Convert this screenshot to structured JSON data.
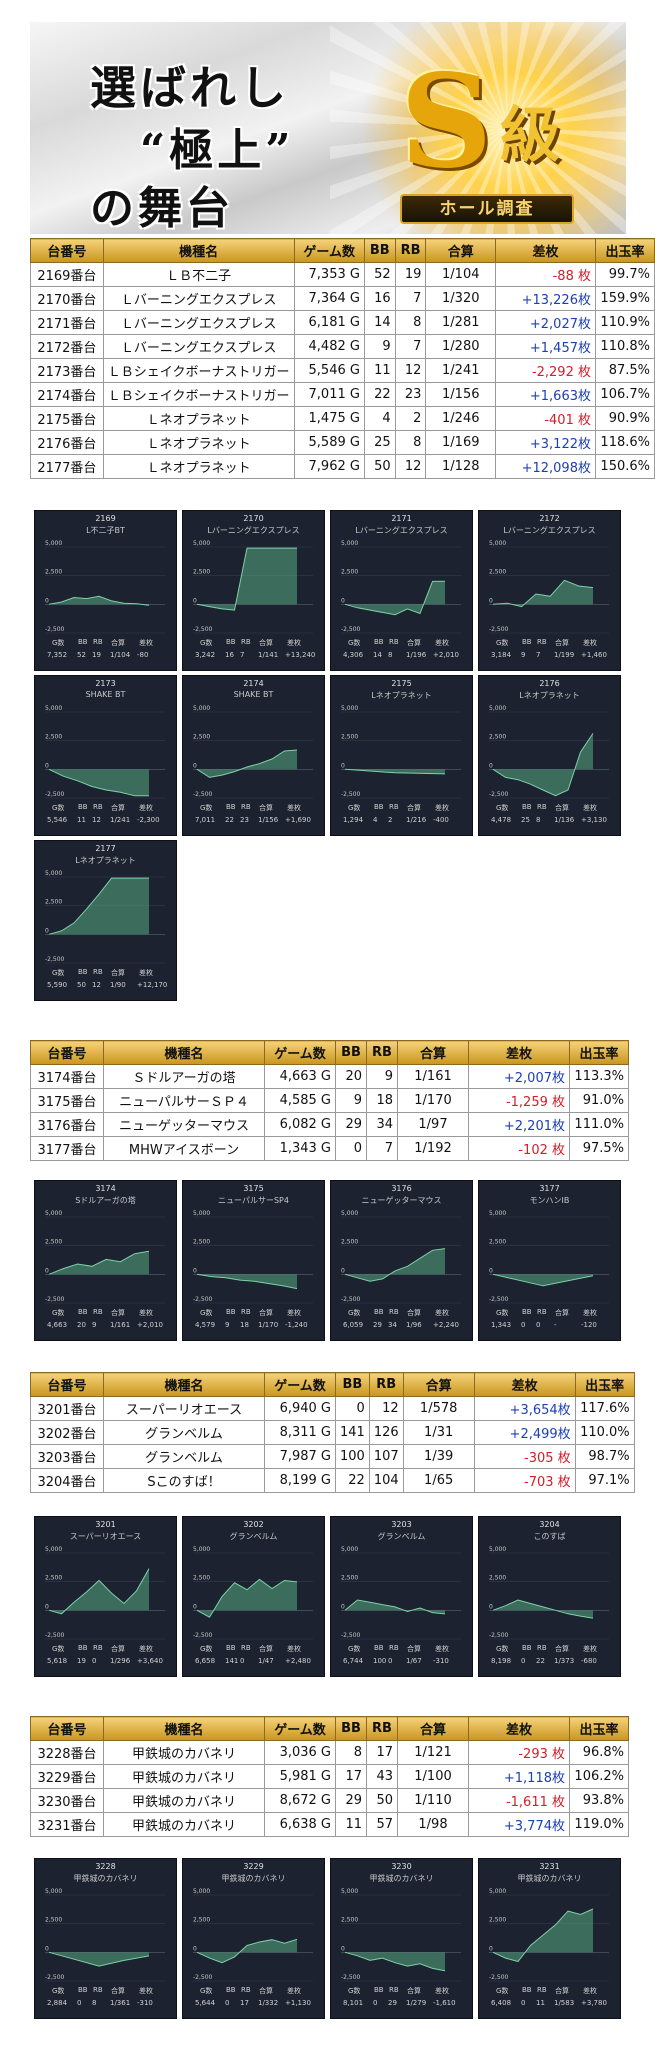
{
  "banner": {
    "line1": "選ばれし",
    "line2": "“極上”",
    "line3": "の舞台",
    "emblem_s": "S",
    "emblem_kyu": "級",
    "hall_label": "ホール調査"
  },
  "headers": [
    "台番号",
    "機種名",
    "ゲーム数",
    "BB",
    "RB",
    "合算",
    "差枚",
    "出玉率"
  ],
  "chart_axis": {
    "top": "5,000",
    "mid": "2,500",
    "zero": "0",
    "bottom": "-2,500"
  },
  "stat_labels": [
    "G数",
    "BB",
    "RB",
    "合算",
    "差枚"
  ],
  "chart_data": [
    {
      "type": "table",
      "rows": [
        {
          "no": "2169番台",
          "model": "ＬＢ不二子",
          "games": "7,353 G",
          "bb": "52",
          "rb": "19",
          "ratio": "1/104",
          "diff": "-88 枚",
          "rate": "99.7%"
        },
        {
          "no": "2170番台",
          "model": "Ｌバーニングエクスプレス",
          "games": "7,364 G",
          "bb": "16",
          "rb": "7",
          "ratio": "1/320",
          "diff": "+13,226枚",
          "rate": "159.9%"
        },
        {
          "no": "2171番台",
          "model": "Ｌバーニングエクスプレス",
          "games": "6,181 G",
          "bb": "14",
          "rb": "8",
          "ratio": "1/281",
          "diff": "+2,027枚",
          "rate": "110.9%"
        },
        {
          "no": "2172番台",
          "model": "Ｌバーニングエクスプレス",
          "games": "4,482 G",
          "bb": "9",
          "rb": "7",
          "ratio": "1/280",
          "diff": "+1,457枚",
          "rate": "110.8%"
        },
        {
          "no": "2173番台",
          "model": "ＬＢシェイクボーナストリガー",
          "games": "5,546 G",
          "bb": "11",
          "rb": "12",
          "ratio": "1/241",
          "diff": "-2,292 枚",
          "rate": "87.5%"
        },
        {
          "no": "2174番台",
          "model": "ＬＢシェイクボーナストリガー",
          "games": "7,011 G",
          "bb": "22",
          "rb": "23",
          "ratio": "1/156",
          "diff": "+1,663枚",
          "rate": "106.7%"
        },
        {
          "no": "2175番台",
          "model": "Ｌネオプラネット",
          "games": "1,475 G",
          "bb": "4",
          "rb": "2",
          "ratio": "1/246",
          "diff": "-401 枚",
          "rate": "90.9%"
        },
        {
          "no": "2176番台",
          "model": "Ｌネオプラネット",
          "games": "5,589 G",
          "bb": "25",
          "rb": "8",
          "ratio": "1/169",
          "diff": "+3,122枚",
          "rate": "118.6%"
        },
        {
          "no": "2177番台",
          "model": "Ｌネオプラネット",
          "games": "7,962 G",
          "bb": "50",
          "rb": "12",
          "ratio": "1/128",
          "diff": "+12,098枚",
          "rate": "150.6%"
        }
      ]
    },
    {
      "type": "line",
      "ylim": [
        -2500,
        5000
      ],
      "panels": [
        {
          "id": "2169",
          "name": "L不二子BT",
          "stats": [
            "7,352",
            "52",
            "19",
            "1/104",
            "-80"
          ],
          "y": [
            0,
            200,
            600,
            500,
            700,
            300,
            100,
            50,
            -80
          ]
        },
        {
          "id": "2170",
          "name": "Lバーニングエクスプレス",
          "stats": [
            "3,242",
            "16",
            "7",
            "1/141",
            "+13,240"
          ],
          "y": [
            0,
            -200,
            -400,
            -500,
            4900,
            4900,
            4900,
            4900,
            4900
          ]
        },
        {
          "id": "2171",
          "name": "Lバーニングエクスプレス",
          "stats": [
            "4,306",
            "14",
            "8",
            "1/196",
            "+2,010"
          ],
          "y": [
            0,
            -300,
            -500,
            -700,
            -900,
            -400,
            -800,
            2000,
            2010
          ]
        },
        {
          "id": "2172",
          "name": "Lバーニングエクスプレス",
          "stats": [
            "3,184",
            "9",
            "7",
            "1/199",
            "+1,460"
          ],
          "y": [
            0,
            100,
            -200,
            900,
            700,
            2100,
            1600,
            1460
          ]
        },
        {
          "id": "2173",
          "name": "SHAKE BT",
          "stats": [
            "5,546",
            "11",
            "12",
            "1/241",
            "-2,300"
          ],
          "y": [
            0,
            -600,
            -1000,
            -1500,
            -1800,
            -2000,
            -2300,
            -2300
          ]
        },
        {
          "id": "2174",
          "name": "SHAKE BT",
          "stats": [
            "7,011",
            "22",
            "23",
            "1/156",
            "+1,690"
          ],
          "y": [
            0,
            -700,
            -500,
            -200,
            200,
            500,
            900,
            1600,
            1690
          ]
        },
        {
          "id": "2175",
          "name": "Lネオプラネット",
          "stats": [
            "1,294",
            "4",
            "2",
            "1/216",
            "-400"
          ],
          "y": [
            0,
            -300,
            -400
          ]
        },
        {
          "id": "2176",
          "name": "Lネオプラネット",
          "stats": [
            "4,478",
            "25",
            "8",
            "1/136",
            "+3,130"
          ],
          "y": [
            0,
            -700,
            -900,
            -1300,
            -1800,
            -2300,
            -1800,
            1500,
            3130
          ]
        },
        {
          "id": "2177",
          "name": "Lネオプラネット",
          "stats": [
            "5,590",
            "50",
            "12",
            "1/90",
            "+12,170"
          ],
          "y": [
            0,
            300,
            1000,
            2200,
            3500,
            4900,
            4900,
            4900,
            4900
          ]
        }
      ]
    },
    {
      "type": "table",
      "rows": [
        {
          "no": "3174番台",
          "model": "Ｓドルアーガの塔",
          "games": "4,663 G",
          "bb": "20",
          "rb": "9",
          "ratio": "1/161",
          "diff": "+2,007枚",
          "rate": "113.3%"
        },
        {
          "no": "3175番台",
          "model": "ニューパルサーＳＰ４",
          "games": "4,585 G",
          "bb": "9",
          "rb": "18",
          "ratio": "1/170",
          "diff": "-1,259 枚",
          "rate": "91.0%"
        },
        {
          "no": "3176番台",
          "model": "ニューゲッターマウス",
          "games": "6,082 G",
          "bb": "29",
          "rb": "34",
          "ratio": "1/97",
          "diff": "+2,201枚",
          "rate": "111.0%"
        },
        {
          "no": "3177番台",
          "model": "MHWアイスボーン",
          "games": "1,343 G",
          "bb": "0",
          "rb": "7",
          "ratio": "1/192",
          "diff": "-102 枚",
          "rate": "97.5%"
        }
      ]
    },
    {
      "type": "line",
      "ylim": [
        -2500,
        5000
      ],
      "panels": [
        {
          "id": "3174",
          "name": "Sドルアーガの塔",
          "stats": [
            "4,663",
            "20",
            "9",
            "1/161",
            "+2,010"
          ],
          "y": [
            0,
            500,
            900,
            700,
            1300,
            1100,
            1800,
            2010
          ]
        },
        {
          "id": "3175",
          "name": "ニューパルサーSP4",
          "stats": [
            "4,579",
            "9",
            "18",
            "1/170",
            "-1,240"
          ],
          "y": [
            0,
            -200,
            -300,
            -500,
            -600,
            -800,
            -1000,
            -1240
          ]
        },
        {
          "id": "3176",
          "name": "ニューゲッターマウス",
          "stats": [
            "6,059",
            "29",
            "34",
            "1/96",
            "+2,240"
          ],
          "y": [
            0,
            -300,
            -600,
            -400,
            300,
            700,
            1400,
            2100,
            2240
          ]
        },
        {
          "id": "3177",
          "name": "モンハンIB",
          "stats": [
            "1,343",
            "0",
            "0",
            "-",
            "-120"
          ],
          "y": [
            0,
            -1000,
            -120
          ]
        }
      ]
    },
    {
      "type": "table",
      "rows": [
        {
          "no": "3201番台",
          "model": "スーパーリオエース",
          "games": "6,940 G",
          "bb": "0",
          "rb": "12",
          "ratio": "1/578",
          "diff": "+3,654枚",
          "rate": "117.6%"
        },
        {
          "no": "3202番台",
          "model": "グランベルム",
          "games": "8,311 G",
          "bb": "141",
          "rb": "126",
          "ratio": "1/31",
          "diff": "+2,499枚",
          "rate": "110.0%"
        },
        {
          "no": "3203番台",
          "model": "グランベルム",
          "games": "7,987 G",
          "bb": "100",
          "rb": "107",
          "ratio": "1/39",
          "diff": "-305 枚",
          "rate": "98.7%"
        },
        {
          "no": "3204番台",
          "model": "Sこのすば！",
          "games": "8,199 G",
          "bb": "22",
          "rb": "104",
          "ratio": "1/65",
          "diff": "-703 枚",
          "rate": "97.1%"
        }
      ]
    },
    {
      "type": "line",
      "ylim": [
        -2500,
        5000
      ],
      "panels": [
        {
          "id": "3201",
          "name": "スーパーリオエース",
          "stats": [
            "5,618",
            "19",
            "0",
            "1/296",
            "+3,640"
          ],
          "y": [
            0,
            -300,
            700,
            1600,
            2600,
            1500,
            600,
            1700,
            3640
          ]
        },
        {
          "id": "3202",
          "name": "グランベルム",
          "stats": [
            "6,658",
            "141",
            "0",
            "1/47",
            "+2,480"
          ],
          "y": [
            0,
            -600,
            1200,
            2400,
            1800,
            2700,
            1900,
            2600,
            2480
          ]
        },
        {
          "id": "3203",
          "name": "グランベルム",
          "stats": [
            "6,744",
            "100",
            "0",
            "1/67",
            "-310"
          ],
          "y": [
            0,
            900,
            700,
            500,
            300,
            -100,
            200,
            -200,
            -310
          ]
        },
        {
          "id": "3204",
          "name": "このすば",
          "stats": [
            "8,198",
            "0",
            "22",
            "1/373",
            "-680"
          ],
          "y": [
            0,
            400,
            900,
            600,
            300,
            0,
            -300,
            -500,
            -680
          ]
        }
      ]
    },
    {
      "type": "table",
      "rows": [
        {
          "no": "3228番台",
          "model": "甲鉄城のカバネリ",
          "games": "3,036 G",
          "bb": "8",
          "rb": "17",
          "ratio": "1/121",
          "diff": "-293 枚",
          "rate": "96.8%"
        },
        {
          "no": "3229番台",
          "model": "甲鉄城のカバネリ",
          "games": "5,981 G",
          "bb": "17",
          "rb": "43",
          "ratio": "1/100",
          "diff": "+1,118枚",
          "rate": "106.2%"
        },
        {
          "no": "3230番台",
          "model": "甲鉄城のカバネリ",
          "games": "8,672 G",
          "bb": "29",
          "rb": "50",
          "ratio": "1/110",
          "diff": "-1,611 枚",
          "rate": "93.8%"
        },
        {
          "no": "3231番台",
          "model": "甲鉄城のカバネリ",
          "games": "6,638 G",
          "bb": "11",
          "rb": "57",
          "ratio": "1/98",
          "diff": "+3,774枚",
          "rate": "119.0%"
        }
      ]
    },
    {
      "type": "line",
      "ylim": [
        -2500,
        5000
      ],
      "panels": [
        {
          "id": "3228",
          "name": "甲鉄城のカバネリ",
          "stats": [
            "2,884",
            "0",
            "8",
            "1/361",
            "-310"
          ],
          "y": [
            0,
            -600,
            -1200,
            -700,
            -310
          ]
        },
        {
          "id": "3229",
          "name": "甲鉄城のカバネリ",
          "stats": [
            "5,644",
            "0",
            "17",
            "1/332",
            "+1,130"
          ],
          "y": [
            0,
            -500,
            -900,
            -400,
            600,
            900,
            1100,
            800,
            1130
          ]
        },
        {
          "id": "3230",
          "name": "甲鉄城のカバネリ",
          "stats": [
            "8,101",
            "0",
            "29",
            "1/279",
            "-1,610"
          ],
          "y": [
            0,
            -300,
            -700,
            -500,
            -900,
            -1200,
            -1000,
            -1400,
            -1610
          ]
        },
        {
          "id": "3231",
          "name": "甲鉄城のカバネリ",
          "stats": [
            "6,408",
            "0",
            "11",
            "1/583",
            "+3,780"
          ],
          "y": [
            0,
            -500,
            -800,
            600,
            1500,
            2400,
            3600,
            3300,
            3780
          ]
        }
      ]
    }
  ]
}
